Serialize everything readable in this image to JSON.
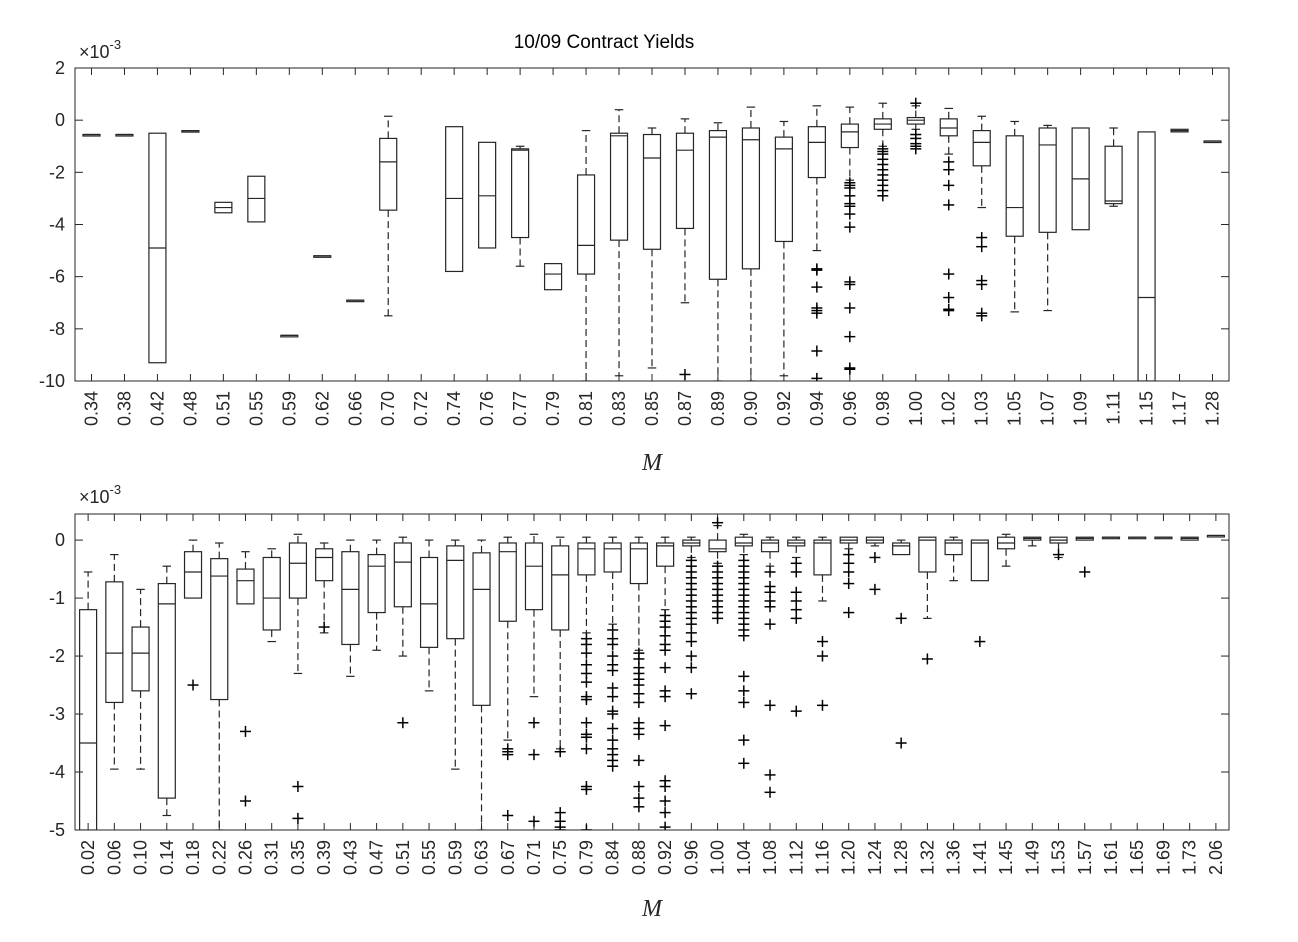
{
  "title": "10/09 Contract Yields",
  "chart_data": [
    {
      "type": "box",
      "title": "10/09 Contract Yields",
      "xlabel": "M",
      "ylabel": "",
      "y_exponent_label": "×10",
      "y_exponent": "-3",
      "ylim": [
        -10,
        2
      ],
      "yticks": [
        "2",
        "0",
        "-2",
        "-4",
        "-6",
        "-8",
        "-10"
      ],
      "ytick_values": [
        2,
        0,
        -2,
        -4,
        -6,
        -8,
        -10
      ],
      "categories": [
        "0.34",
        "0.38",
        "0.42",
        "0.48",
        "0.51",
        "0.55",
        "0.59",
        "0.62",
        "0.66",
        "0.70",
        "0.72",
        "0.74",
        "0.76",
        "0.77",
        "0.79",
        "0.81",
        "0.83",
        "0.85",
        "0.87",
        "0.89",
        "0.90",
        "0.92",
        "0.94",
        "0.96",
        "0.98",
        "1.00",
        "1.02",
        "1.03",
        "1.05",
        "1.07",
        "1.09",
        "1.11",
        "1.15",
        "1.17",
        "1.28"
      ],
      "boxes": [
        {
          "q1": -0.55,
          "med": -0.55,
          "q3": -0.55,
          "lo": -0.55,
          "hi": -0.55,
          "out": []
        },
        {
          "q1": -0.55,
          "med": -0.55,
          "q3": -0.55,
          "lo": -0.55,
          "hi": -0.55,
          "out": []
        },
        {
          "q1": -9.3,
          "med": -4.9,
          "q3": -0.5,
          "lo": -9.3,
          "hi": -0.5,
          "out": []
        },
        {
          "q1": -0.4,
          "med": -0.4,
          "q3": -0.4,
          "lo": -0.4,
          "hi": -0.4,
          "out": []
        },
        {
          "q1": -3.55,
          "med": -3.35,
          "q3": -3.15,
          "lo": -3.55,
          "hi": -3.15,
          "out": []
        },
        {
          "q1": -3.9,
          "med": -3.0,
          "q3": -2.15,
          "lo": -3.9,
          "hi": -2.15,
          "out": []
        },
        {
          "q1": -8.25,
          "med": -8.25,
          "q3": -8.25,
          "lo": -8.25,
          "hi": -8.25,
          "out": []
        },
        {
          "q1": -5.2,
          "med": -5.2,
          "q3": -5.2,
          "lo": -5.2,
          "hi": -5.2,
          "out": []
        },
        {
          "q1": -6.9,
          "med": -6.9,
          "q3": -6.9,
          "lo": -6.9,
          "hi": -6.9,
          "out": []
        },
        {
          "q1": -3.45,
          "med": -1.6,
          "q3": -0.7,
          "lo": -7.5,
          "hi": 0.15,
          "out": []
        },
        {
          "q1": null,
          "med": null,
          "q3": null,
          "lo": null,
          "hi": null,
          "out": []
        },
        {
          "q1": -5.8,
          "med": -3.0,
          "q3": -0.25,
          "lo": -5.8,
          "hi": -0.25,
          "out": []
        },
        {
          "q1": -4.9,
          "med": -2.9,
          "q3": -0.85,
          "lo": -4.9,
          "hi": -0.85,
          "out": []
        },
        {
          "q1": -4.5,
          "med": -1.15,
          "q3": -1.1,
          "lo": -5.6,
          "hi": -1.0,
          "out": []
        },
        {
          "q1": -6.5,
          "med": -5.9,
          "q3": -5.5,
          "lo": -6.5,
          "hi": -5.5,
          "out": []
        },
        {
          "q1": -5.9,
          "med": -4.8,
          "q3": -2.1,
          "lo": -10.0,
          "hi": -0.4,
          "out": []
        },
        {
          "q1": -4.6,
          "med": -0.6,
          "q3": -0.5,
          "lo": -9.8,
          "hi": 0.4,
          "out": []
        },
        {
          "q1": -4.95,
          "med": -1.45,
          "q3": -0.55,
          "lo": -9.5,
          "hi": -0.3,
          "out": []
        },
        {
          "q1": -4.15,
          "med": -1.15,
          "q3": -0.5,
          "lo": -7.0,
          "hi": 0.05,
          "out": [
            -9.75
          ]
        },
        {
          "q1": -6.1,
          "med": -0.65,
          "q3": -0.4,
          "lo": -10.0,
          "hi": -0.1,
          "out": []
        },
        {
          "q1": -5.7,
          "med": -0.75,
          "q3": -0.3,
          "lo": -10.0,
          "hi": 0.5,
          "out": []
        },
        {
          "q1": -4.65,
          "med": -1.1,
          "q3": -0.65,
          "lo": -9.8,
          "hi": -0.05,
          "out": []
        },
        {
          "q1": -2.2,
          "med": -0.85,
          "q3": -0.25,
          "lo": -5.0,
          "hi": 0.55,
          "out": [
            -5.7,
            -5.75,
            -6.4,
            -7.2,
            -7.3,
            -7.4,
            -8.85,
            -9.9
          ]
        },
        {
          "q1": -1.05,
          "med": -0.45,
          "q3": -0.15,
          "lo": -2.3,
          "hi": 0.5,
          "out": [
            -2.4,
            -2.5,
            -2.6,
            -2.9,
            -3.2,
            -3.3,
            -3.6,
            -4.1,
            -6.2,
            -6.3,
            -7.2,
            -8.3,
            -9.5,
            -9.55
          ]
        },
        {
          "q1": -0.35,
          "med": -0.15,
          "q3": 0.05,
          "lo": -1.0,
          "hi": 0.65,
          "out": [
            -1.1,
            -1.2,
            -1.3,
            -1.5,
            -1.7,
            -1.9,
            -2.1,
            -2.3,
            -2.5,
            -2.7,
            -2.9
          ]
        },
        {
          "q1": -0.15,
          "med": 0.0,
          "q3": 0.1,
          "lo": -0.35,
          "hi": 0.55,
          "out": [
            -0.55,
            -0.7,
            -0.9,
            -1.0,
            -1.1,
            0.65
          ]
        },
        {
          "q1": -0.6,
          "med": -0.3,
          "q3": 0.05,
          "lo": -1.3,
          "hi": 0.45,
          "out": [
            -1.6,
            -1.9,
            -2.5,
            -3.25,
            -5.9,
            -6.8,
            -7.25,
            -7.3
          ]
        },
        {
          "q1": -1.75,
          "med": -0.85,
          "q3": -0.4,
          "lo": -3.35,
          "hi": 0.15,
          "out": [
            -4.5,
            -4.85,
            -6.15,
            -6.3,
            -7.4,
            -7.5
          ]
        },
        {
          "q1": -4.45,
          "med": -3.35,
          "q3": -0.6,
          "lo": -7.35,
          "hi": -0.05,
          "out": []
        },
        {
          "q1": -4.3,
          "med": -0.95,
          "q3": -0.3,
          "lo": -7.3,
          "hi": -0.2,
          "out": []
        },
        {
          "q1": -4.2,
          "med": -2.25,
          "q3": -0.3,
          "lo": -4.2,
          "hi": -0.3,
          "out": []
        },
        {
          "q1": -3.2,
          "med": -3.1,
          "q3": -1.0,
          "lo": -3.3,
          "hi": -0.3,
          "out": []
        },
        {
          "q1": -10.0,
          "med": -6.8,
          "q3": -0.45,
          "lo": -10.0,
          "hi": -0.45,
          "out": []
        },
        {
          "q1": -0.45,
          "med": -0.4,
          "q3": -0.35,
          "lo": -0.45,
          "hi": -0.35,
          "out": []
        },
        {
          "q1": -0.8,
          "med": -0.8,
          "q3": -0.8,
          "lo": -0.8,
          "hi": -0.8,
          "out": []
        }
      ]
    },
    {
      "type": "box",
      "title": "",
      "xlabel": "M",
      "ylabel": "",
      "y_exponent_label": "×10",
      "y_exponent": "-3",
      "ylim": [
        -5,
        0.45
      ],
      "yticks": [
        "0",
        "-1",
        "-2",
        "-3",
        "-4",
        "-5"
      ],
      "ytick_values": [
        0,
        -1,
        -2,
        -3,
        -4,
        -5
      ],
      "categories": [
        "0.02",
        "0.06",
        "0.10",
        "0.14",
        "0.18",
        "0.22",
        "0.26",
        "0.31",
        "0.35",
        "0.39",
        "0.43",
        "0.47",
        "0.51",
        "0.55",
        "0.59",
        "0.63",
        "0.67",
        "0.71",
        "0.75",
        "0.79",
        "0.84",
        "0.88",
        "0.92",
        "0.96",
        "1.00",
        "1.04",
        "1.08",
        "1.12",
        "1.16",
        "1.20",
        "1.24",
        "1.28",
        "1.32",
        "1.36",
        "1.41",
        "1.45",
        "1.49",
        "1.53",
        "1.57",
        "1.61",
        "1.65",
        "1.69",
        "1.73",
        "2.06"
      ],
      "boxes": [
        {
          "q1": -5.0,
          "med": -3.5,
          "q3": -1.2,
          "lo": -5.0,
          "hi": -0.55,
          "out": []
        },
        {
          "q1": -2.8,
          "med": -1.95,
          "q3": -0.72,
          "lo": -3.95,
          "hi": -0.25,
          "out": []
        },
        {
          "q1": -2.6,
          "med": -1.95,
          "q3": -1.5,
          "lo": -3.95,
          "hi": -0.85,
          "out": []
        },
        {
          "q1": -4.45,
          "med": -1.1,
          "q3": -0.75,
          "lo": -4.75,
          "hi": -0.45,
          "out": []
        },
        {
          "q1": -1.0,
          "med": -0.55,
          "q3": -0.2,
          "lo": -1.0,
          "hi": 0.0,
          "out": [
            -2.5
          ]
        },
        {
          "q1": -2.75,
          "med": -0.62,
          "q3": -0.32,
          "lo": -5.0,
          "hi": -0.05,
          "out": []
        },
        {
          "q1": -1.1,
          "med": -0.7,
          "q3": -0.5,
          "lo": -1.1,
          "hi": -0.2,
          "out": [
            -3.3,
            -4.5
          ]
        },
        {
          "q1": -1.55,
          "med": -1.0,
          "q3": -0.3,
          "lo": -1.75,
          "hi": -0.15,
          "out": []
        },
        {
          "q1": -1.0,
          "med": -0.4,
          "q3": -0.05,
          "lo": -2.3,
          "hi": 0.1,
          "out": [
            -4.25,
            -4.8
          ]
        },
        {
          "q1": -0.7,
          "med": -0.3,
          "q3": -0.15,
          "lo": -1.6,
          "hi": -0.05,
          "out": [
            -1.5
          ]
        },
        {
          "q1": -1.8,
          "med": -0.85,
          "q3": -0.2,
          "lo": -2.35,
          "hi": 0.0,
          "out": []
        },
        {
          "q1": -1.25,
          "med": -0.45,
          "q3": -0.25,
          "lo": -1.9,
          "hi": 0.0,
          "out": []
        },
        {
          "q1": -1.15,
          "med": -0.38,
          "q3": -0.05,
          "lo": -2.0,
          "hi": 0.05,
          "out": [
            -3.15
          ]
        },
        {
          "q1": -1.85,
          "med": -1.1,
          "q3": -0.3,
          "lo": -2.6,
          "hi": 0.0,
          "out": []
        },
        {
          "q1": -1.7,
          "med": -0.35,
          "q3": -0.1,
          "lo": -3.95,
          "hi": 0.0,
          "out": []
        },
        {
          "q1": -2.85,
          "med": -0.85,
          "q3": -0.22,
          "lo": -5.0,
          "hi": 0.0,
          "out": []
        },
        {
          "q1": -1.4,
          "med": -0.2,
          "q3": -0.05,
          "lo": -3.45,
          "hi": 0.05,
          "out": [
            -3.6,
            -3.65,
            -3.7,
            -4.75
          ]
        },
        {
          "q1": -1.2,
          "med": -0.45,
          "q3": -0.05,
          "lo": -2.7,
          "hi": 0.1,
          "out": [
            -3.15,
            -3.7,
            -4.85
          ]
        },
        {
          "q1": -1.55,
          "med": -0.6,
          "q3": -0.1,
          "lo": -3.6,
          "hi": 0.05,
          "out": [
            -3.65,
            -4.7,
            -4.85,
            -4.95,
            -5.0
          ]
        },
        {
          "q1": -0.6,
          "med": -0.15,
          "q3": -0.05,
          "lo": -1.6,
          "hi": 0.05,
          "out": [
            -1.7,
            -1.8,
            -1.95,
            -2.15,
            -2.3,
            -2.45,
            -2.7,
            -2.75,
            -3.15,
            -3.35,
            -3.4,
            -3.6,
            -4.25,
            -4.3,
            -5.0
          ]
        },
        {
          "q1": -0.55,
          "med": -0.15,
          "q3": -0.05,
          "lo": -1.45,
          "hi": 0.05,
          "out": [
            -1.55,
            -1.7,
            -1.8,
            -2.0,
            -2.15,
            -2.25,
            -2.55,
            -2.7,
            -2.95,
            -3.0,
            -3.25,
            -3.45,
            -3.6,
            -3.7,
            -3.8,
            -3.9
          ]
        },
        {
          "q1": -0.75,
          "med": -0.15,
          "q3": -0.05,
          "lo": -1.9,
          "hi": 0.05,
          "out": [
            -1.95,
            -2.05,
            -2.2,
            -2.3,
            -2.4,
            -2.5,
            -2.65,
            -2.8,
            -3.15,
            -3.25,
            -3.35,
            -3.8,
            -4.25,
            -4.45,
            -4.6
          ]
        },
        {
          "q1": -0.45,
          "med": -0.1,
          "q3": -0.05,
          "lo": -1.2,
          "hi": 0.05,
          "out": [
            -1.3,
            -1.4,
            -1.5,
            -1.65,
            -1.8,
            -1.9,
            -2.2,
            -2.6,
            -2.7,
            -3.2,
            -4.15,
            -4.25,
            -4.5,
            -4.7,
            -4.95
          ]
        },
        {
          "q1": -0.1,
          "med": -0.05,
          "q3": 0.0,
          "lo": -0.3,
          "hi": 0.05,
          "out": [
            -0.35,
            -0.45,
            -0.55,
            -0.65,
            -0.75,
            -0.85,
            -0.95,
            -1.05,
            -1.15,
            -1.25,
            -1.35,
            -1.45,
            -1.6,
            -1.75,
            -2.0,
            -2.2,
            -2.65
          ]
        },
        {
          "q1": -0.2,
          "med": -0.15,
          "q3": 0.0,
          "lo": -0.4,
          "hi": 0.25,
          "out": [
            -0.45,
            -0.55,
            -0.65,
            -0.75,
            -0.85,
            -0.95,
            -1.05,
            -1.15,
            -1.25,
            -1.35,
            0.3
          ]
        },
        {
          "q1": -0.1,
          "med": -0.05,
          "q3": 0.05,
          "lo": -0.25,
          "hi": 0.1,
          "out": [
            -0.35,
            -0.45,
            -0.55,
            -0.65,
            -0.75,
            -0.85,
            -0.95,
            -1.05,
            -1.15,
            -1.25,
            -1.35,
            -1.45,
            -1.55,
            -1.65,
            -2.35,
            -2.6,
            -2.8,
            -3.45,
            -3.85
          ]
        },
        {
          "q1": -0.2,
          "med": -0.05,
          "q3": 0.0,
          "lo": -0.45,
          "hi": 0.05,
          "out": [
            -0.55,
            -0.8,
            -0.9,
            -1.05,
            -1.15,
            -1.45,
            -2.85,
            -4.05,
            -4.35
          ]
        },
        {
          "q1": -0.1,
          "med": -0.05,
          "q3": 0.0,
          "lo": -0.3,
          "hi": 0.05,
          "out": [
            -0.4,
            -0.55,
            -0.9,
            -1.05,
            -1.2,
            -1.35,
            -2.95
          ]
        },
        {
          "q1": -0.6,
          "med": -0.05,
          "q3": 0.0,
          "lo": -1.05,
          "hi": 0.05,
          "out": [
            -1.75,
            -2.0,
            -2.85
          ]
        },
        {
          "q1": -0.05,
          "med": 0.0,
          "q3": 0.05,
          "lo": -0.15,
          "hi": 0.05,
          "out": [
            -0.25,
            -0.4,
            -0.55,
            -0.75,
            -1.25
          ]
        },
        {
          "q1": -0.05,
          "med": 0.0,
          "q3": 0.05,
          "lo": -0.1,
          "hi": 0.05,
          "out": [
            -0.3,
            -0.85
          ]
        },
        {
          "q1": -0.25,
          "med": -0.1,
          "q3": -0.05,
          "lo": -0.25,
          "hi": 0.0,
          "out": [
            -1.35,
            -3.5
          ]
        },
        {
          "q1": -0.55,
          "med": 0.0,
          "q3": 0.05,
          "lo": -1.35,
          "hi": 0.05,
          "out": [
            -2.05
          ]
        },
        {
          "q1": -0.25,
          "med": -0.05,
          "q3": 0.0,
          "lo": -0.7,
          "hi": 0.05,
          "out": []
        },
        {
          "q1": -0.7,
          "med": -0.05,
          "q3": 0.0,
          "lo": -0.7,
          "hi": 0.0,
          "out": [
            -1.75
          ]
        },
        {
          "q1": -0.15,
          "med": -0.05,
          "q3": 0.05,
          "lo": -0.45,
          "hi": 0.1,
          "out": []
        },
        {
          "q1": 0.0,
          "med": 0.03,
          "q3": 0.05,
          "lo": -0.1,
          "hi": 0.05,
          "out": []
        },
        {
          "q1": -0.05,
          "med": 0.0,
          "q3": 0.05,
          "lo": -0.3,
          "hi": 0.05,
          "out": [
            -0.25
          ]
        },
        {
          "q1": 0.0,
          "med": 0.03,
          "q3": 0.05,
          "lo": 0.0,
          "hi": 0.05,
          "out": [
            -0.55
          ]
        },
        {
          "q1": 0.05,
          "med": 0.05,
          "q3": 0.05,
          "lo": 0.05,
          "hi": 0.05,
          "out": []
        },
        {
          "q1": 0.05,
          "med": 0.05,
          "q3": 0.05,
          "lo": 0.05,
          "hi": 0.05,
          "out": []
        },
        {
          "q1": 0.05,
          "med": 0.05,
          "q3": 0.05,
          "lo": 0.05,
          "hi": 0.05,
          "out": []
        },
        {
          "q1": 0.0,
          "med": 0.03,
          "q3": 0.05,
          "lo": 0.0,
          "hi": 0.05,
          "out": []
        },
        {
          "q1": 0.08,
          "med": 0.08,
          "q3": 0.08,
          "lo": 0.08,
          "hi": 0.08,
          "out": []
        }
      ]
    }
  ]
}
